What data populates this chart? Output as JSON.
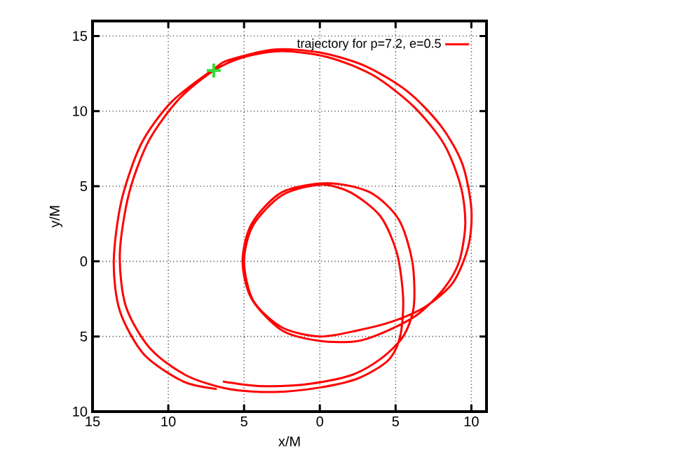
{
  "chart_data": {
    "type": "line",
    "xlabel": "x/M",
    "ylabel": "y/M",
    "xlim": [
      -15,
      11
    ],
    "ylim": [
      -10,
      16
    ],
    "xticks": [
      {
        "value": -15,
        "label": "15"
      },
      {
        "value": -10,
        "label": "10"
      },
      {
        "value": -5,
        "label": "5"
      },
      0,
      5,
      10
    ],
    "yticks": [
      {
        "value": -10,
        "label": "10"
      },
      {
        "value": -5,
        "label": "5"
      },
      0,
      5,
      10,
      15
    ],
    "grid": true,
    "legend": "top right",
    "series": [
      {
        "name": "trajectory for p=7.2, e=0.5",
        "color": "#ff0000",
        "marker": "none",
        "line_style": "solid",
        "x": [
          -6.4,
          -4,
          -1,
          2,
          4,
          5.5,
          6.2,
          6.1,
          5.2,
          3.3,
          0.5,
          -2.5,
          -4.5,
          -5.1,
          -4.5,
          -2.5,
          0,
          2.5,
          4.5,
          6.5,
          8.2,
          9.2,
          9.6,
          9.3,
          8.2,
          6.2,
          3.5,
          0.5,
          -2.5,
          -5,
          -7,
          -9.3,
          -11.3,
          -12.6,
          -13.2,
          -12.8,
          -11.2,
          -8.8,
          -6,
          -3,
          0,
          2.5,
          4.5,
          5.3,
          5.5,
          5.1,
          4,
          2,
          0,
          -2.5,
          -4.4,
          -5,
          -4.4,
          -2.5,
          0,
          2.5,
          4.8,
          7,
          8.8,
          9.8,
          10,
          9.4,
          8,
          5.8,
          3,
          0,
          -3,
          -6,
          -7,
          -9.8,
          -11.8,
          -13.1,
          -13.6,
          -13.2,
          -11.6,
          -9,
          -6.8
        ],
        "values": [
          -8.0,
          -8.3,
          -8.2,
          -7.6,
          -6.5,
          -5,
          -3,
          0,
          2.8,
          4.6,
          5.2,
          4.6,
          2.5,
          0,
          -2.5,
          -4.6,
          -5.3,
          -5.3,
          -4.6,
          -3.5,
          -1.8,
          0,
          2.5,
          5,
          7.8,
          10.3,
          12.4,
          13.6,
          14.0,
          13.6,
          12.7,
          10.8,
          8,
          4.5,
          0.5,
          -3,
          -5.8,
          -7.6,
          -8.5,
          -8.7,
          -8.4,
          -7.8,
          -6.6,
          -5,
          -2.5,
          0.5,
          3,
          4.6,
          5.1,
          4.4,
          2.4,
          0,
          -2.6,
          -4.4,
          -5,
          -4.6,
          -4,
          -3,
          -1.4,
          1,
          3.5,
          6.5,
          9,
          11.3,
          13,
          13.9,
          14.1,
          13.4,
          12.8,
          10.6,
          7.8,
          4,
          0,
          -3.3,
          -6.2,
          -8,
          -8.5
        ]
      },
      {
        "color": "#33dd33",
        "type": "scatter",
        "marker": "cross",
        "x": [
          -7
        ],
        "values": [
          12.7
        ]
      }
    ]
  }
}
